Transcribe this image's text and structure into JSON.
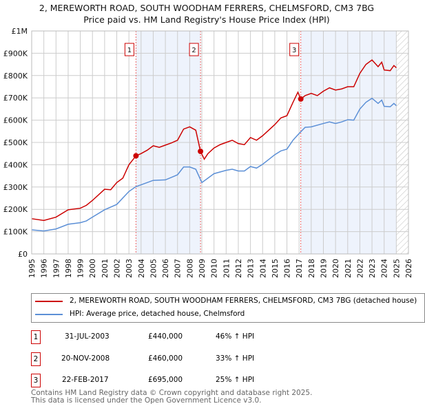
{
  "chart_data": {
    "type": "line",
    "title": "2, MEREWORTH ROAD, SOUTH WOODHAM FERRERS, CHELMSFORD, CM3 7BG",
    "subtitle": "Price paid vs. HM Land Registry's House Price Index (HPI)",
    "xlim": [
      1995,
      2026
    ],
    "ylim": [
      0,
      1000000
    ],
    "y_ticks": [
      {
        "v": 0,
        "l": "£0"
      },
      {
        "v": 100000,
        "l": "£100K"
      },
      {
        "v": 200000,
        "l": "£200K"
      },
      {
        "v": 300000,
        "l": "£300K"
      },
      {
        "v": 400000,
        "l": "£400K"
      },
      {
        "v": 500000,
        "l": "£500K"
      },
      {
        "v": 600000,
        "l": "£600K"
      },
      {
        "v": 700000,
        "l": "£700K"
      },
      {
        "v": 800000,
        "l": "£800K"
      },
      {
        "v": 900000,
        "l": "£900K"
      },
      {
        "v": 1000000,
        "l": "£1M"
      }
    ],
    "x_ticks": [
      "1995",
      "1996",
      "1997",
      "1998",
      "1999",
      "2000",
      "2001",
      "2002",
      "2003",
      "2004",
      "2005",
      "2006",
      "2007",
      "2008",
      "2009",
      "2010",
      "2011",
      "2012",
      "2013",
      "2014",
      "2015",
      "2016",
      "2017",
      "2018",
      "2019",
      "2020",
      "2021",
      "2022",
      "2023",
      "2024",
      "2025",
      "2026"
    ],
    "grid": true,
    "shaded_ranges": [
      [
        2003.58,
        2008.89
      ],
      [
        2017.14,
        2025.0
      ]
    ],
    "hatched_from": 2025.0,
    "series": [
      {
        "name": "2, MEREWORTH ROAD, SOUTH WOODHAM FERRERS, CHELMSFORD, CM3 7BG (detached house)",
        "color": "#cc0000",
        "x": [
          1995,
          1996,
          1997,
          1998,
          1999,
          1999.5,
          2000,
          2001,
          2001.5,
          2002,
          2002.5,
          2003,
          2003.58,
          2004,
          2004.5,
          2005,
          2005.5,
          2006,
          2006.5,
          2007,
          2007.5,
          2008,
          2008.5,
          2008.89,
          2009.2,
          2009.5,
          2010,
          2010.5,
          2011,
          2011.5,
          2012,
          2012.5,
          2013,
          2013.5,
          2014,
          2014.5,
          2015,
          2015.5,
          2016,
          2016.5,
          2016.9,
          2017.14,
          2017.5,
          2018,
          2018.5,
          2019,
          2019.5,
          2020,
          2020.5,
          2021,
          2021.5,
          2022,
          2022.5,
          2023,
          2023.5,
          2023.8,
          2024,
          2024.5,
          2024.8,
          2025
        ],
        "y": [
          158000,
          150000,
          165000,
          198000,
          205000,
          218000,
          240000,
          290000,
          288000,
          320000,
          340000,
          400000,
          440000,
          450000,
          465000,
          485000,
          478000,
          488000,
          498000,
          510000,
          560000,
          570000,
          555000,
          460000,
          425000,
          450000,
          475000,
          490000,
          500000,
          510000,
          495000,
          490000,
          522000,
          510000,
          530000,
          555000,
          580000,
          610000,
          620000,
          680000,
          725000,
          695000,
          710000,
          720000,
          710000,
          730000,
          745000,
          735000,
          740000,
          750000,
          750000,
          810000,
          850000,
          870000,
          840000,
          860000,
          825000,
          822000,
          845000,
          835000
        ]
      },
      {
        "name": "HPI: Average price, detached house, Chelmsford",
        "color": "#5b8fd6",
        "x": [
          1995,
          1996,
          1997,
          1998,
          1999,
          1999.5,
          2000,
          2001,
          2002,
          2003,
          2003.58,
          2004,
          2005,
          2006,
          2007,
          2007.5,
          2008,
          2008.5,
          2009,
          2009.5,
          2010,
          2011,
          2011.5,
          2012,
          2012.5,
          2013,
          2013.5,
          2014,
          2015,
          2015.5,
          2016,
          2016.5,
          2017,
          2017.5,
          2018,
          2019,
          2019.5,
          2020,
          2020.5,
          2021,
          2021.5,
          2022,
          2022.5,
          2023,
          2023.5,
          2023.8,
          2024,
          2024.5,
          2024.8,
          2025
        ],
        "y": [
          108000,
          103000,
          112000,
          133000,
          140000,
          148000,
          165000,
          198000,
          222000,
          280000,
          302000,
          310000,
          330000,
          332000,
          355000,
          390000,
          390000,
          380000,
          320000,
          340000,
          360000,
          375000,
          380000,
          372000,
          372000,
          392000,
          385000,
          402000,
          445000,
          462000,
          470000,
          510000,
          540000,
          568000,
          570000,
          585000,
          592000,
          585000,
          592000,
          602000,
          600000,
          650000,
          680000,
          698000,
          675000,
          690000,
          662000,
          660000,
          675000,
          665000
        ]
      }
    ],
    "sales": [
      {
        "n": "1",
        "x": 2003.58,
        "y": 440000
      },
      {
        "n": "2",
        "x": 2008.89,
        "y": 460000
      },
      {
        "n": "3",
        "x": 2017.14,
        "y": 695000
      }
    ]
  },
  "legend": {
    "property": "2, MEREWORTH ROAD, SOUTH WOODHAM FERRERS, CHELMSFORD, CM3 7BG (detached house)",
    "hpi": "HPI: Average price, detached house, Chelmsford"
  },
  "transactions": [
    {
      "n": "1",
      "date": "31-JUL-2003",
      "price": "£440,000",
      "hpi": "46% ↑ HPI"
    },
    {
      "n": "2",
      "date": "20-NOV-2008",
      "price": "£460,000",
      "hpi": "33% ↑ HPI"
    },
    {
      "n": "3",
      "date": "22-FEB-2017",
      "price": "£695,000",
      "hpi": "25% ↑ HPI"
    }
  ],
  "footer": {
    "line1": "Contains HM Land Registry data © Crown copyright and database right 2025.",
    "line2": "This data is licensed under the Open Government Licence v3.0."
  }
}
